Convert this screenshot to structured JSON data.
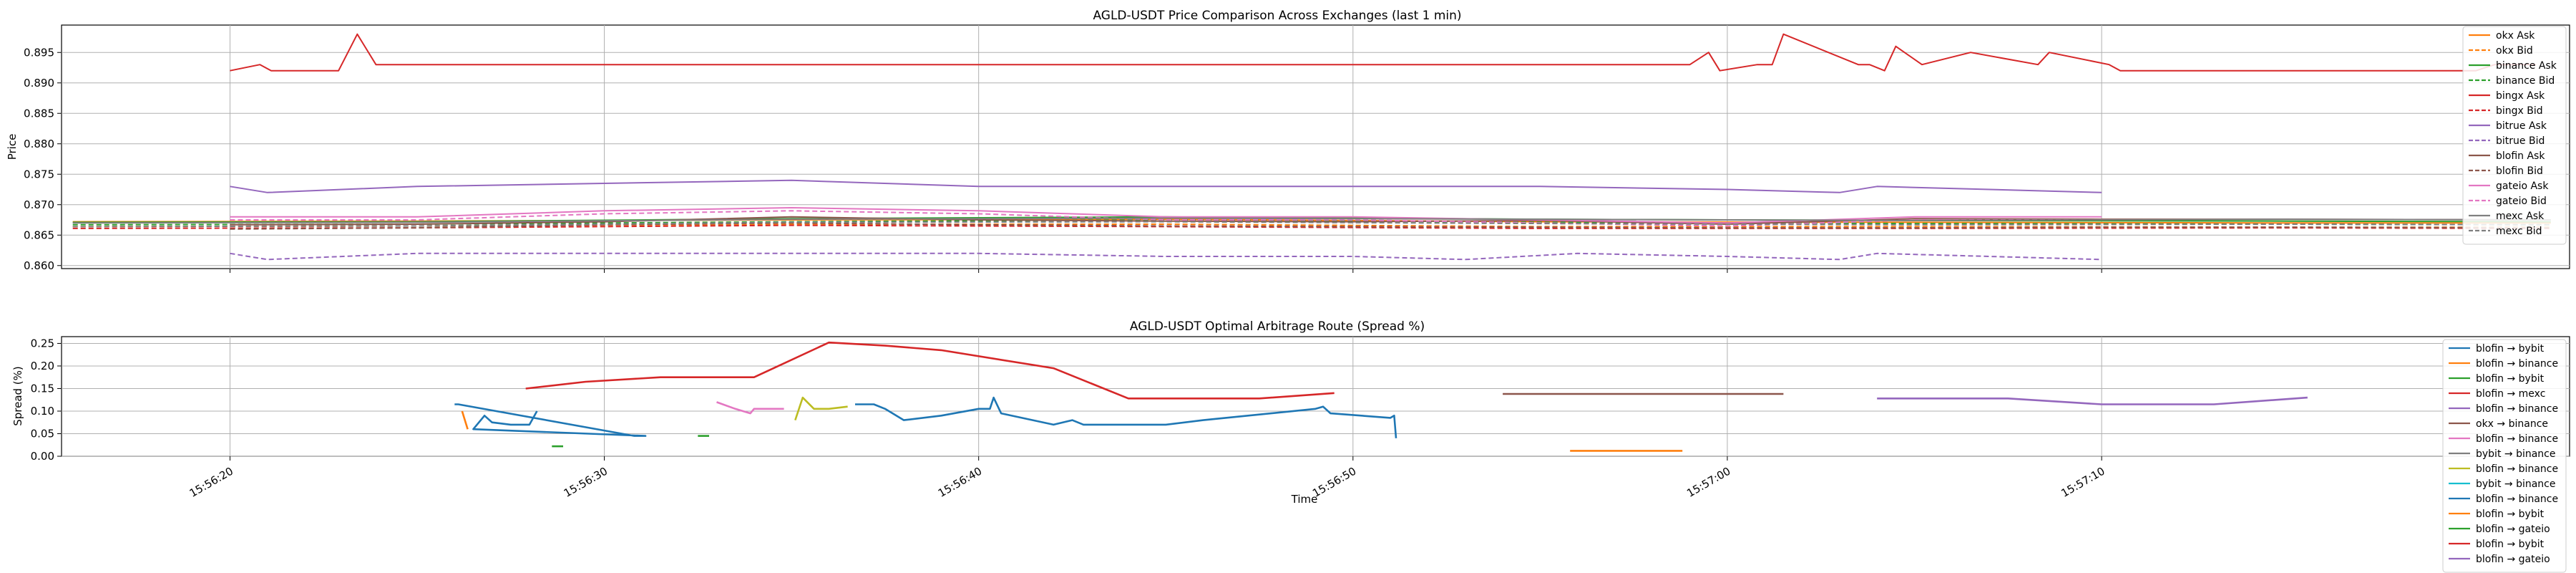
{
  "chart_data": [
    {
      "type": "line",
      "title": "AGLD-USDT Price Comparison Across Exchanges (last 1 min)",
      "xlabel": "",
      "ylabel": "Price",
      "x_unit": "time",
      "xlim": [
        "15:56:15.5",
        "15:57:22.5"
      ],
      "ylim": [
        0.8595,
        0.8995
      ],
      "yticks": [
        0.86,
        0.865,
        0.87,
        0.875,
        0.88,
        0.885,
        0.89,
        0.895
      ],
      "ytick_labels": [
        "0.860",
        "0.865",
        "0.870",
        "0.875",
        "0.880",
        "0.885",
        "0.890",
        "0.895"
      ],
      "grid": true,
      "legend": "right",
      "series": [
        {
          "name": "okx Ask",
          "color": "#ff7f0e",
          "dash": "solid",
          "x": [
            "15:56:15.8",
            "15:56:25",
            "15:56:35",
            "15:56:45",
            "15:56:55",
            "15:57:05",
            "15:57:15",
            "15:57:22"
          ],
          "y": [
            0.8672,
            0.8673,
            0.8675,
            0.8676,
            0.8672,
            0.8671,
            0.867,
            0.867
          ]
        },
        {
          "name": "okx Bid",
          "color": "#ff7f0e",
          "dash": "dashed",
          "x": [
            "15:56:15.8",
            "15:56:25",
            "15:56:35",
            "15:56:45",
            "15:56:55",
            "15:57:05",
            "15:57:15",
            "15:57:22"
          ],
          "y": [
            0.8664,
            0.8665,
            0.8668,
            0.8668,
            0.8664,
            0.8664,
            0.8663,
            0.8663
          ]
        },
        {
          "name": "binance Ask",
          "color": "#2ca02c",
          "dash": "solid",
          "x": [
            "15:56:15.8",
            "15:56:25",
            "15:56:35",
            "15:56:45",
            "15:56:55",
            "15:57:05",
            "15:57:15",
            "15:57:22"
          ],
          "y": [
            0.8671,
            0.8672,
            0.8677,
            0.868,
            0.8676,
            0.8674,
            0.8673,
            0.8672
          ]
        },
        {
          "name": "binance Bid",
          "color": "#2ca02c",
          "dash": "dashed",
          "x": [
            "15:56:15.8",
            "15:56:25",
            "15:56:35",
            "15:56:45",
            "15:56:55",
            "15:57:05",
            "15:57:15",
            "15:57:22"
          ],
          "y": [
            0.8667,
            0.8668,
            0.8672,
            0.8675,
            0.8671,
            0.8669,
            0.8668,
            0.8667
          ]
        },
        {
          "name": "bingx Ask",
          "color": "#d62728",
          "dash": "solid",
          "x": [
            "15:56:20",
            "15:56:20.8",
            "15:56:21.1",
            "15:56:22.9",
            "15:56:23.4",
            "15:56:23.9",
            "15:56:55",
            "15:56:59",
            "15:56:59.5",
            "15:56:59.8",
            "15:57:00.8",
            "15:57:01.2",
            "15:57:01.5",
            "15:57:03.5",
            "15:57:03.8",
            "15:57:04.2",
            "15:57:04.5",
            "15:57:05.2",
            "15:57:06.5",
            "15:57:08.3",
            "15:57:08.6",
            "15:57:10.2",
            "15:57:10.5",
            "15:57:20",
            "15:57:20.5",
            "15:57:21.6"
          ],
          "y": [
            0.892,
            0.893,
            0.892,
            0.892,
            0.898,
            0.893,
            0.893,
            0.893,
            0.895,
            0.892,
            0.893,
            0.893,
            0.898,
            0.893,
            0.893,
            0.892,
            0.896,
            0.893,
            0.895,
            0.893,
            0.895,
            0.893,
            0.892,
            0.892,
            0.893,
            0.893
          ]
        },
        {
          "name": "bingx Bid",
          "color": "#d62728",
          "dash": "dashed",
          "x": [
            "15:56:15.8",
            "15:56:25",
            "15:56:35",
            "15:56:45",
            "15:56:55",
            "15:57:05",
            "15:57:15",
            "15:57:22"
          ],
          "y": [
            0.8661,
            0.8662,
            0.8666,
            0.8664,
            0.8661,
            0.8661,
            0.8662,
            0.8661
          ]
        },
        {
          "name": "bitrue Ask",
          "color": "#9467bd",
          "dash": "solid",
          "x": [
            "15:56:20",
            "15:56:21",
            "15:56:25",
            "15:56:30",
            "15:56:35",
            "15:56:40",
            "15:56:45",
            "15:56:50",
            "15:56:55",
            "15:57:00",
            "15:57:03",
            "15:57:04",
            "15:57:07",
            "15:57:10"
          ],
          "y": [
            0.873,
            0.872,
            0.873,
            0.8735,
            0.874,
            0.873,
            0.873,
            0.873,
            0.873,
            0.8725,
            0.872,
            0.873,
            0.8725,
            0.872
          ]
        },
        {
          "name": "bitrue Bid",
          "color": "#9467bd",
          "dash": "dashed",
          "x": [
            "15:56:20",
            "15:56:21",
            "15:56:25",
            "15:56:30",
            "15:56:35",
            "15:56:40",
            "15:56:45",
            "15:56:50",
            "15:56:53",
            "15:56:56",
            "15:57:00",
            "15:57:03",
            "15:57:04",
            "15:57:07",
            "15:57:10"
          ],
          "y": [
            0.862,
            0.861,
            0.862,
            0.862,
            0.862,
            0.862,
            0.8615,
            0.8615,
            0.861,
            0.862,
            0.8615,
            0.861,
            0.862,
            0.8615,
            0.861
          ]
        },
        {
          "name": "blofin Ask",
          "color": "#8c564b",
          "dash": "solid",
          "x": [
            "15:56:20",
            "15:56:25",
            "15:56:30",
            "15:56:35",
            "15:56:40",
            "15:56:45",
            "15:56:50",
            "15:56:55",
            "15:57:00",
            "15:57:05",
            "15:57:10",
            "15:57:15",
            "15:57:22"
          ],
          "y": [
            0.8667,
            0.8668,
            0.8672,
            0.868,
            0.8675,
            0.8673,
            0.8672,
            0.8674,
            0.8668,
            0.8677,
            0.8676,
            0.8676,
            0.8675
          ]
        },
        {
          "name": "blofin Bid",
          "color": "#8c564b",
          "dash": "dashed",
          "x": [
            "15:56:20",
            "15:56:25",
            "15:56:30",
            "15:56:35",
            "15:56:40",
            "15:56:45",
            "15:56:50",
            "15:56:55",
            "15:57:00",
            "15:57:05",
            "15:57:10",
            "15:57:15",
            "15:57:22"
          ],
          "y": [
            0.866,
            0.8662,
            0.8667,
            0.867,
            0.8667,
            0.8665,
            0.8664,
            0.8663,
            0.8662,
            0.8662,
            0.8663,
            0.8663,
            0.8662
          ]
        },
        {
          "name": "gateio Ask",
          "color": "#e377c2",
          "dash": "solid",
          "x": [
            "15:56:20",
            "15:56:25",
            "15:56:30",
            "15:56:35",
            "15:56:40",
            "15:56:45",
            "15:56:50",
            "15:56:55",
            "15:57:00",
            "15:57:05",
            "15:57:10"
          ],
          "y": [
            0.868,
            0.868,
            0.869,
            0.8695,
            0.869,
            0.868,
            0.868,
            0.8675,
            0.867,
            0.868,
            0.868
          ]
        },
        {
          "name": "gateio Bid",
          "color": "#e377c2",
          "dash": "dashed",
          "x": [
            "15:56:20",
            "15:56:25",
            "15:56:30",
            "15:56:35",
            "15:56:40",
            "15:56:45",
            "15:56:50",
            "15:56:55",
            "15:57:00",
            "15:57:05",
            "15:57:10"
          ],
          "y": [
            0.8675,
            0.8675,
            0.8685,
            0.869,
            0.8685,
            0.8675,
            0.8675,
            0.867,
            0.8665,
            0.8675,
            0.8675
          ]
        },
        {
          "name": "mexc Ask",
          "color": "#7f7f7f",
          "dash": "solid",
          "x": [
            "15:56:15.8",
            "15:56:25",
            "15:56:35",
            "15:56:45",
            "15:56:55",
            "15:57:05",
            "15:57:15",
            "15:57:22"
          ],
          "y": [
            0.867,
            0.8671,
            0.8676,
            0.8678,
            0.8676,
            0.8674,
            0.8676,
            0.8675
          ]
        },
        {
          "name": "mexc Bid",
          "color": "#7f7f7f",
          "dash": "dashed",
          "x": [
            "15:56:15.8",
            "15:56:25",
            "15:56:35",
            "15:56:45",
            "15:56:55",
            "15:57:05",
            "15:57:15",
            "15:57:22"
          ],
          "y": [
            0.8664,
            0.8665,
            0.8671,
            0.8672,
            0.8669,
            0.8667,
            0.8668,
            0.8667
          ]
        }
      ]
    },
    {
      "type": "line",
      "title": "AGLD-USDT Optimal Arbitrage Route (Spread %)",
      "xlabel": "Time",
      "ylabel": "Spread (%)",
      "x_unit": "time",
      "xlim": [
        "15:56:15.5",
        "15:57:22.5"
      ],
      "ylim": [
        0,
        0.265
      ],
      "yticks": [
        0,
        0.05,
        0.1,
        0.15,
        0.2,
        0.25
      ],
      "ytick_labels": [
        "0.00",
        "0.05",
        "0.10",
        "0.15",
        "0.20",
        "0.25"
      ],
      "xticks": [
        "15:56:20",
        "15:56:30",
        "15:56:40",
        "15:56:50",
        "15:57:00",
        "15:57:10"
      ],
      "grid": true,
      "legend": "right",
      "series": [
        {
          "name": "blofin → bybit",
          "color": "#1f77b4",
          "x": [
            "15:56:36.7",
            "15:56:37.2",
            "15:56:37.5",
            "15:56:38",
            "15:56:39",
            "15:56:40",
            "15:56:40.3",
            "15:56:40.4",
            "15:56:40.6",
            "15:56:42",
            "15:56:42.5",
            "15:56:42.8",
            "15:56:43.2",
            "15:56:45",
            "15:56:46",
            "15:56:49",
            "15:56:49.2",
            "15:56:49.4",
            "15:56:51",
            "15:56:51.1",
            "15:56:51.15"
          ],
          "y": [
            0.115,
            0.115,
            0.105,
            0.08,
            0.09,
            0.105,
            0.105,
            0.13,
            0.095,
            0.07,
            0.08,
            0.07,
            0.07,
            0.07,
            0.08,
            0.105,
            0.11,
            0.095,
            0.085,
            0.09,
            0.04
          ]
        },
        {
          "name": "blofin → binance",
          "color": "#ff7f0e",
          "x": [
            "15:56:55.8",
            "15:56:58.8"
          ],
          "y": [
            0.012,
            0.012
          ]
        },
        {
          "name": "blofin → bybit",
          "color": "#2ca02c",
          "x": [
            "15:56:28.6",
            "15:56:28.9"
          ],
          "y": [
            0.022,
            0.022
          ]
        },
        {
          "name": "blofin → mexc",
          "color": "#d62728",
          "x": [
            "15:56:27.9",
            "15:56:29.5",
            "15:56:31.5",
            "15:56:34",
            "15:56:36",
            "15:56:37.5",
            "15:56:39",
            "15:56:42",
            "15:56:44",
            "15:56:46",
            "15:56:47.5",
            "15:56:49.5"
          ],
          "y": [
            0.15,
            0.165,
            0.175,
            0.175,
            0.252,
            0.245,
            0.235,
            0.195,
            0.128,
            0.128,
            0.128,
            0.14
          ]
        },
        {
          "name": "blofin → binance",
          "color": "#9467bd",
          "x": [
            "15:57:04",
            "15:57:06",
            "15:57:07.5",
            "15:57:10",
            "15:57:13",
            "15:57:15.5"
          ],
          "y": [
            0.128,
            0.128,
            0.128,
            0.115,
            0.115,
            0.13
          ]
        },
        {
          "name": "okx → binance",
          "color": "#8c564b",
          "x": [
            "15:56:54",
            "15:57:01.5"
          ],
          "y": [
            0.138,
            0.138
          ]
        },
        {
          "name": "blofin → binance",
          "color": "#e377c2",
          "x": [
            "15:56:33",
            "15:56:33.5",
            "15:56:33.9",
            "15:56:34",
            "15:56:34.4",
            "15:56:34.8"
          ],
          "y": [
            0.12,
            0.105,
            0.095,
            0.105,
            0.105,
            0.105
          ]
        },
        {
          "name": "bybit → binance",
          "color": "#7f7f7f",
          "x": [],
          "y": []
        },
        {
          "name": "blofin → binance",
          "color": "#bcbd22",
          "x": [
            "15:56:35.1",
            "15:56:35.3",
            "15:56:35.6",
            "15:56:36",
            "15:56:36.5"
          ],
          "y": [
            0.08,
            0.13,
            0.105,
            0.105,
            0.11
          ]
        },
        {
          "name": "bybit → binance",
          "color": "#17becf",
          "x": [],
          "y": []
        },
        {
          "name": "blofin → binance",
          "color": "#1f77b4",
          "x": [
            "15:56:26",
            "15:56:26.1",
            "15:56:30.8",
            "15:56:31.1",
            "15:56:26.5",
            "15:56:26.8",
            "15:56:27",
            "15:56:27.5",
            "15:56:28",
            "15:56:28.2"
          ],
          "y": [
            0.115,
            0.115,
            0.045,
            0.045,
            0.06,
            0.09,
            0.075,
            0.07,
            0.07,
            0.1
          ]
        },
        {
          "name": "blofin → bybit",
          "color": "#ff7f0e",
          "x": [
            "15:56:26.2",
            "15:56:26.35"
          ],
          "y": [
            0.1,
            0.06
          ]
        },
        {
          "name": "blofin → gateio",
          "color": "#2ca02c",
          "x": [
            "15:56:32.5",
            "15:56:32.8"
          ],
          "y": [
            0.045,
            0.045
          ]
        },
        {
          "name": "blofin → bybit",
          "color": "#d62728",
          "x": [],
          "y": []
        },
        {
          "name": "blofin → gateio",
          "color": "#9467bd",
          "x": [],
          "y": []
        }
      ]
    }
  ]
}
